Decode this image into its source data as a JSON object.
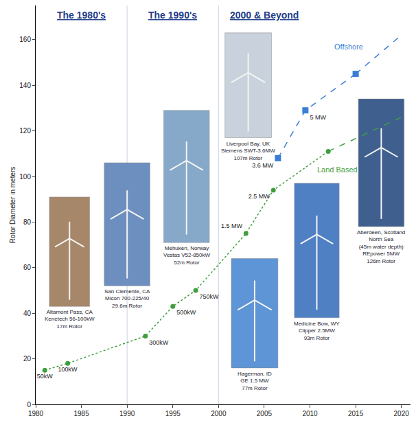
{
  "chart_data": {
    "type": "line",
    "ylabel": "Rotor Diameter in meters",
    "xlim": [
      1980,
      2021
    ],
    "ylim": [
      0,
      175
    ],
    "xticks": [
      1980,
      1985,
      1990,
      1995,
      2000,
      2005,
      2010,
      2015,
      2020
    ],
    "yticks": [
      0,
      20,
      40,
      60,
      80,
      100,
      120,
      140,
      160
    ],
    "grid": false,
    "eras": [
      {
        "label": "The 1980's",
        "from": 1980,
        "to": 1990
      },
      {
        "label": "The 1990's",
        "from": 1990,
        "to": 2000
      },
      {
        "label": "2000 & Beyond",
        "from": 2000,
        "to": 2010
      }
    ],
    "series": [
      {
        "name": "Land Based",
        "color": "#3f9f3f",
        "marker": "circle",
        "line_style": "dotted",
        "x": [
          1981,
          1983.5,
          1992,
          1995,
          1997.5,
          2003,
          2006,
          2012
        ],
        "values": [
          15,
          18,
          30,
          43,
          50,
          75,
          94,
          111
        ],
        "labels": [
          "50kW",
          "100kW",
          "300kW",
          "500kW",
          "750kW",
          "1.5 MW",
          "2.5 MW",
          null
        ]
      },
      {
        "color": "#3f9f3f",
        "marker": "none",
        "line_style": "dashed",
        "x": [
          2012,
          2020
        ],
        "values": [
          111,
          126
        ]
      },
      {
        "name": "Offshore",
        "color": "#3a7fd5",
        "marker": "square",
        "line_style": "dashed",
        "x": [
          2006.5,
          2009.5,
          2015
        ],
        "values": [
          108,
          129,
          145
        ],
        "labels": [
          "3.6 MW",
          "5 MW",
          null
        ]
      },
      {
        "color": "#3a7fd5",
        "marker": "none",
        "line_style": "dashed",
        "x": [
          2015,
          2020
        ],
        "values": [
          145,
          162
        ]
      }
    ],
    "photos": [
      {
        "caption": [
          "Altamont Pass, CA",
          "Kenetech 56-100kW",
          "17m Rotor"
        ]
      },
      {
        "caption": [
          "San Clemente, CA",
          "Micon 700-225/40",
          "29.6m Rotor"
        ]
      },
      {
        "caption": [
          "Mehuken, Norway",
          "Vestas V52-850kW",
          "52m Rotor"
        ]
      },
      {
        "caption": [
          "Liverpool Bay, UK",
          "Siemens SWT-3.6MW",
          "107m Rotor"
        ]
      },
      {
        "caption": [
          "Hagerman, ID",
          "GE 1.5 MW",
          "77m Rotor"
        ]
      },
      {
        "caption": [
          "Medicine Bow, WY",
          "Clipper 2.5MW",
          "93m Rotor"
        ]
      },
      {
        "caption": [
          "Aberdeen, Scotland",
          "North Sea",
          "(45m water depth)",
          "REpower 5MW",
          "126m Rotor"
        ]
      }
    ]
  }
}
